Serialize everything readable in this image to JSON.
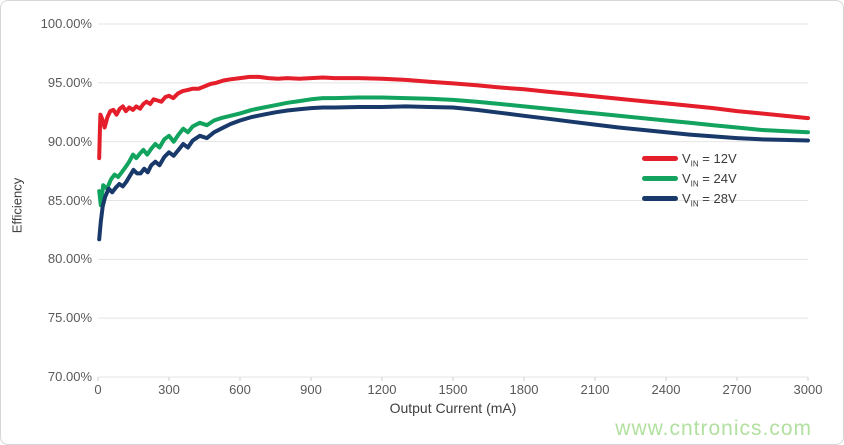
{
  "frame": {
    "background": "#ffffff",
    "border_color": "#d6d6d6"
  },
  "watermark": {
    "text": "www.cntronics.com",
    "color": "#b2e0a0"
  },
  "chart_data": {
    "type": "line",
    "title": "",
    "xlabel": "Output Current (mA)",
    "ylabel": "Efficiency",
    "xlim": [
      0,
      3000
    ],
    "ylim": [
      70,
      100
    ],
    "x_ticks": [
      0,
      300,
      600,
      900,
      1200,
      1500,
      1800,
      2100,
      2400,
      2700,
      3000
    ],
    "x_tick_labels": [
      "0",
      "300",
      "600",
      "900",
      "1200",
      "1500",
      "1800",
      "2100",
      "2400",
      "2700",
      "3000"
    ],
    "y_ticks": [
      100,
      95,
      90,
      85,
      80,
      75,
      70
    ],
    "y_tick_labels": [
      "100.00%",
      "95.00%",
      "90.00%",
      "85.00%",
      "80.00%",
      "75.00%",
      "70.00%"
    ],
    "grid": "horizontal",
    "gridline_color": "#e4e4e4",
    "tick_mark_color": "#cfcfcf",
    "legend_position": "middle-right",
    "series": [
      {
        "id": "vin-12v",
        "label": "VIN = 12V",
        "legend": {
          "prefix": "V",
          "sub": "IN",
          "suffix": " = 12V"
        },
        "color": "#e41e2a",
        "points": [
          [
            5,
            88.6
          ],
          [
            8,
            91.0
          ],
          [
            10,
            92.3
          ],
          [
            18,
            91.9
          ],
          [
            28,
            91.2
          ],
          [
            40,
            92.1
          ],
          [
            52,
            92.6
          ],
          [
            65,
            92.7
          ],
          [
            78,
            92.3
          ],
          [
            92,
            92.8
          ],
          [
            105,
            93.0
          ],
          [
            118,
            92.6
          ],
          [
            132,
            92.9
          ],
          [
            148,
            92.7
          ],
          [
            162,
            93.0
          ],
          [
            178,
            92.8
          ],
          [
            192,
            93.2
          ],
          [
            205,
            93.4
          ],
          [
            220,
            93.2
          ],
          [
            235,
            93.6
          ],
          [
            252,
            93.5
          ],
          [
            268,
            93.4
          ],
          [
            285,
            93.8
          ],
          [
            300,
            93.9
          ],
          [
            318,
            93.7
          ],
          [
            338,
            94.1
          ],
          [
            358,
            94.3
          ],
          [
            380,
            94.4
          ],
          [
            400,
            94.5
          ],
          [
            425,
            94.5
          ],
          [
            450,
            94.7
          ],
          [
            475,
            94.9
          ],
          [
            500,
            95.0
          ],
          [
            530,
            95.2
          ],
          [
            560,
            95.3
          ],
          [
            600,
            95.4
          ],
          [
            640,
            95.5
          ],
          [
            680,
            95.5
          ],
          [
            720,
            95.4
          ],
          [
            760,
            95.35
          ],
          [
            800,
            95.4
          ],
          [
            850,
            95.35
          ],
          [
            900,
            95.4
          ],
          [
            950,
            95.45
          ],
          [
            1000,
            95.4
          ],
          [
            1100,
            95.4
          ],
          [
            1200,
            95.35
          ],
          [
            1300,
            95.25
          ],
          [
            1400,
            95.1
          ],
          [
            1500,
            94.95
          ],
          [
            1600,
            94.8
          ],
          [
            1700,
            94.6
          ],
          [
            1800,
            94.45
          ],
          [
            1900,
            94.25
          ],
          [
            2000,
            94.05
          ],
          [
            2100,
            93.85
          ],
          [
            2200,
            93.65
          ],
          [
            2300,
            93.45
          ],
          [
            2400,
            93.25
          ],
          [
            2500,
            93.05
          ],
          [
            2600,
            92.85
          ],
          [
            2700,
            92.6
          ],
          [
            2800,
            92.4
          ],
          [
            2900,
            92.2
          ],
          [
            3000,
            92.0
          ]
        ]
      },
      {
        "id": "vin-24v",
        "label": "VIN = 24V",
        "legend": {
          "prefix": "V",
          "sub": "IN",
          "suffix": " = 24V"
        },
        "color": "#12a35e",
        "points": [
          [
            5,
            85.8
          ],
          [
            12,
            84.6
          ],
          [
            22,
            86.3
          ],
          [
            38,
            86.0
          ],
          [
            55,
            86.8
          ],
          [
            70,
            87.2
          ],
          [
            85,
            87.0
          ],
          [
            100,
            87.4
          ],
          [
            115,
            87.8
          ],
          [
            132,
            88.3
          ],
          [
            148,
            88.9
          ],
          [
            162,
            88.6
          ],
          [
            178,
            89.0
          ],
          [
            192,
            89.3
          ],
          [
            208,
            88.9
          ],
          [
            225,
            89.4
          ],
          [
            242,
            89.8
          ],
          [
            260,
            89.5
          ],
          [
            280,
            90.2
          ],
          [
            300,
            90.5
          ],
          [
            320,
            90.0
          ],
          [
            340,
            90.6
          ],
          [
            360,
            91.1
          ],
          [
            380,
            90.8
          ],
          [
            400,
            91.3
          ],
          [
            430,
            91.6
          ],
          [
            460,
            91.4
          ],
          [
            490,
            91.8
          ],
          [
            520,
            92.0
          ],
          [
            560,
            92.2
          ],
          [
            600,
            92.4
          ],
          [
            650,
            92.7
          ],
          [
            700,
            92.9
          ],
          [
            750,
            93.1
          ],
          [
            800,
            93.3
          ],
          [
            850,
            93.45
          ],
          [
            900,
            93.6
          ],
          [
            950,
            93.7
          ],
          [
            1000,
            93.7
          ],
          [
            1100,
            93.75
          ],
          [
            1200,
            93.75
          ],
          [
            1300,
            93.7
          ],
          [
            1400,
            93.65
          ],
          [
            1500,
            93.55
          ],
          [
            1600,
            93.4
          ],
          [
            1700,
            93.2
          ],
          [
            1800,
            93.0
          ],
          [
            1900,
            92.8
          ],
          [
            2000,
            92.6
          ],
          [
            2100,
            92.4
          ],
          [
            2200,
            92.2
          ],
          [
            2300,
            92.0
          ],
          [
            2400,
            91.8
          ],
          [
            2500,
            91.6
          ],
          [
            2600,
            91.4
          ],
          [
            2700,
            91.2
          ],
          [
            2800,
            91.0
          ],
          [
            2900,
            90.9
          ],
          [
            3000,
            90.8
          ]
        ]
      },
      {
        "id": "vin-28v",
        "label": "VIN = 28V",
        "legend": {
          "prefix": "V",
          "sub": "IN",
          "suffix": " = 28V"
        },
        "color": "#18396a",
        "points": [
          [
            5,
            81.7
          ],
          [
            12,
            83.2
          ],
          [
            20,
            84.5
          ],
          [
            30,
            85.3
          ],
          [
            45,
            86.0
          ],
          [
            60,
            85.7
          ],
          [
            75,
            86.1
          ],
          [
            90,
            86.4
          ],
          [
            105,
            86.2
          ],
          [
            120,
            86.6
          ],
          [
            135,
            87.1
          ],
          [
            150,
            87.6
          ],
          [
            165,
            87.3
          ],
          [
            180,
            87.3
          ],
          [
            195,
            87.7
          ],
          [
            210,
            87.4
          ],
          [
            225,
            88.0
          ],
          [
            242,
            88.3
          ],
          [
            260,
            88.0
          ],
          [
            280,
            88.7
          ],
          [
            300,
            89.1
          ],
          [
            320,
            88.8
          ],
          [
            340,
            89.3
          ],
          [
            360,
            89.8
          ],
          [
            380,
            89.5
          ],
          [
            400,
            90.1
          ],
          [
            430,
            90.5
          ],
          [
            460,
            90.3
          ],
          [
            490,
            90.8
          ],
          [
            520,
            91.1
          ],
          [
            560,
            91.5
          ],
          [
            600,
            91.8
          ],
          [
            650,
            92.1
          ],
          [
            700,
            92.3
          ],
          [
            750,
            92.5
          ],
          [
            800,
            92.65
          ],
          [
            850,
            92.75
          ],
          [
            900,
            92.85
          ],
          [
            950,
            92.9
          ],
          [
            1000,
            92.9
          ],
          [
            1100,
            92.95
          ],
          [
            1200,
            92.95
          ],
          [
            1300,
            93.0
          ],
          [
            1400,
            92.95
          ],
          [
            1500,
            92.9
          ],
          [
            1600,
            92.7
          ],
          [
            1700,
            92.45
          ],
          [
            1800,
            92.2
          ],
          [
            1900,
            91.95
          ],
          [
            2000,
            91.7
          ],
          [
            2100,
            91.45
          ],
          [
            2200,
            91.2
          ],
          [
            2300,
            91.0
          ],
          [
            2400,
            90.8
          ],
          [
            2500,
            90.6
          ],
          [
            2600,
            90.45
          ],
          [
            2700,
            90.3
          ],
          [
            2800,
            90.2
          ],
          [
            2900,
            90.15
          ],
          [
            3000,
            90.1
          ]
        ]
      }
    ]
  }
}
